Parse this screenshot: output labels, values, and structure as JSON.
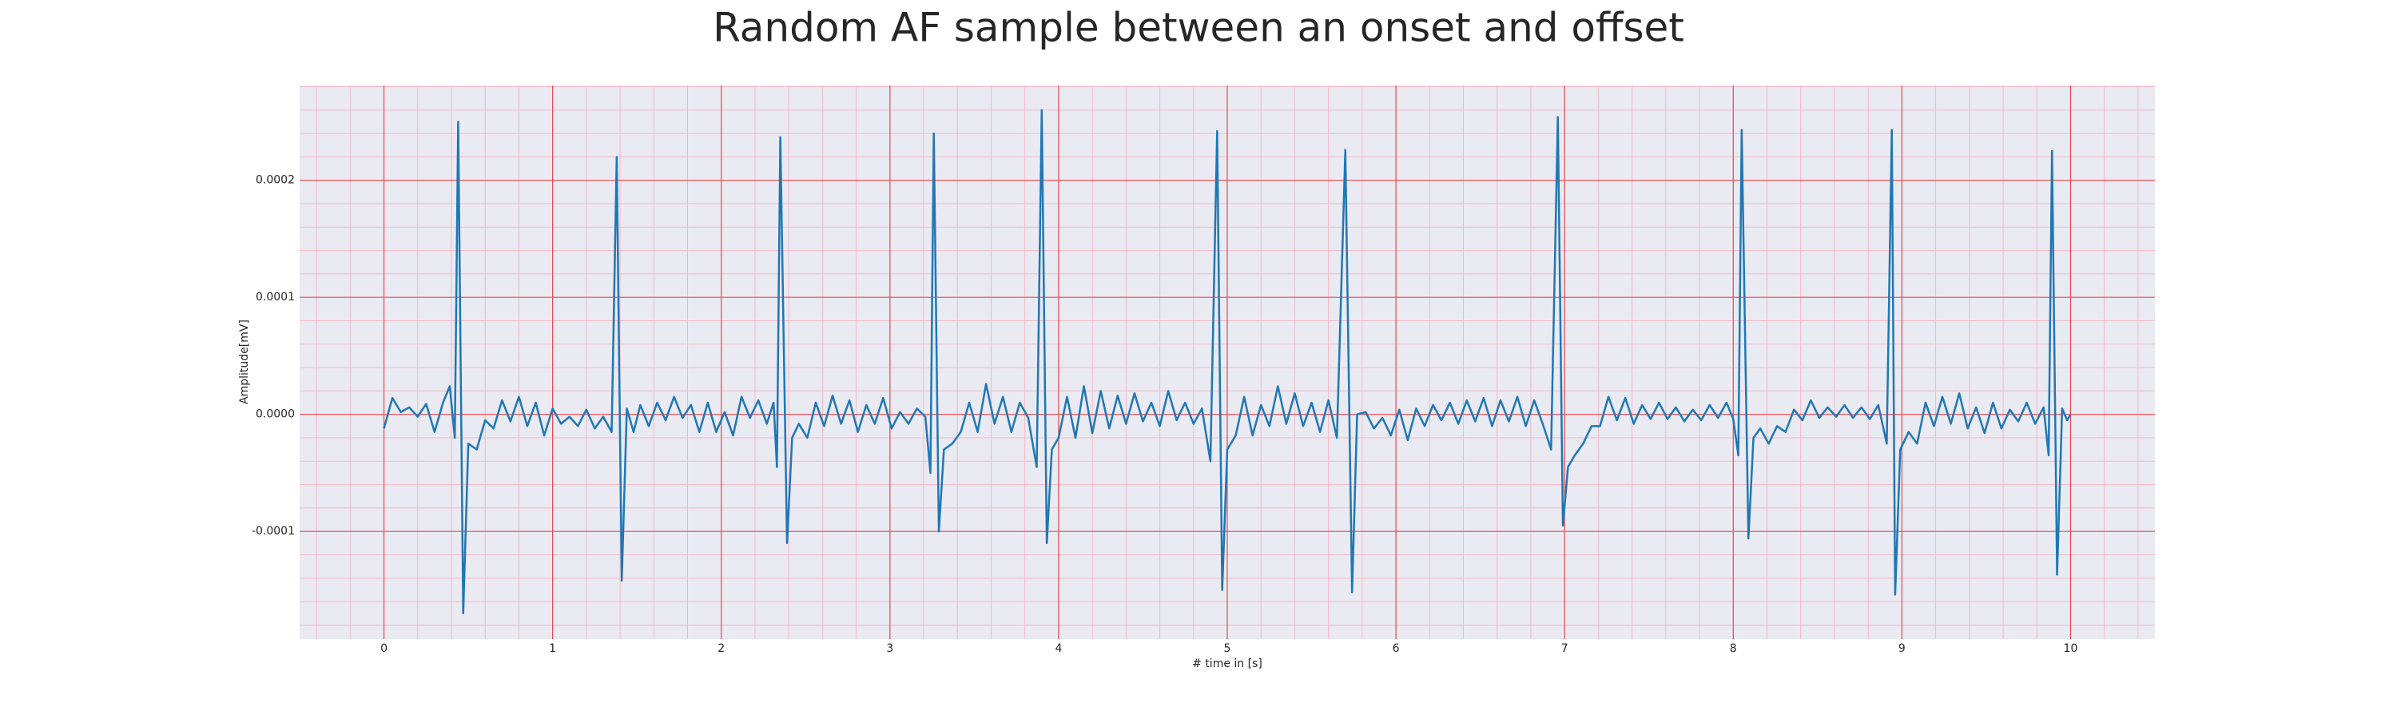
{
  "chart_data": {
    "type": "line",
    "title": "Random AF sample between an onset and offset",
    "x_label": "# time in [s]",
    "y_label": "Amplitude[mV]",
    "xlim": [
      -0.5,
      10.5
    ],
    "ylim": [
      -0.000192,
      0.000281
    ],
    "xticks": [
      0,
      1,
      2,
      3,
      4,
      5,
      6,
      7,
      8,
      9,
      10
    ],
    "yticks": [
      -0.0001,
      {
        "value": 0,
        "label": "0.0000"
      },
      0.0001,
      0.0002
    ],
    "xminorticks": [
      -0.4,
      -0.2,
      0.2,
      0.4,
      0.6,
      0.8,
      1.2,
      1.4,
      1.6,
      1.8,
      2.2,
      2.4,
      2.6,
      2.8,
      3.2,
      3.4,
      3.6,
      3.8,
      4.2,
      4.4,
      4.6,
      4.8,
      5.2,
      5.4,
      5.6,
      5.8,
      6.2,
      6.4,
      6.6,
      6.8,
      7.2,
      7.4,
      7.6,
      7.8,
      8.2,
      8.4,
      8.6,
      8.8,
      9.2,
      9.4,
      9.6,
      9.8,
      10.2,
      10.4
    ],
    "yminorticks": [
      -0.00018,
      -0.00016,
      -0.00014,
      -0.00012,
      -8e-05,
      -6e-05,
      -4e-05,
      -2e-05,
      2e-05,
      4e-05,
      6e-05,
      8e-05,
      0.00012,
      0.00014,
      0.00016,
      0.00018,
      0.00022,
      0.00024,
      0.00026,
      0.00028
    ],
    "grid": true,
    "background": "#eaeaf2",
    "grid_color": "#e8474c",
    "minor_grid_color": "#f3b8c6",
    "x": [
      0,
      0.05,
      0.1,
      0.15,
      0.2,
      0.25,
      0.3,
      0.35,
      0.39,
      0.42,
      0.44,
      0.47,
      0.5,
      0.55,
      0.6,
      0.65,
      0.7,
      0.75,
      0.8,
      0.85,
      0.9,
      0.95,
      1.0,
      1.05,
      1.1,
      1.15,
      1.2,
      1.25,
      1.3,
      1.35,
      1.38,
      1.41,
      1.44,
      1.48,
      1.52,
      1.57,
      1.62,
      1.67,
      1.72,
      1.77,
      1.82,
      1.87,
      1.92,
      1.97,
      2.02,
      2.07,
      2.12,
      2.17,
      2.22,
      2.27,
      2.31,
      2.33,
      2.35,
      2.39,
      2.42,
      2.46,
      2.51,
      2.56,
      2.61,
      2.66,
      2.71,
      2.76,
      2.81,
      2.86,
      2.91,
      2.96,
      3.01,
      3.06,
      3.11,
      3.16,
      3.21,
      3.24,
      3.26,
      3.29,
      3.32,
      3.37,
      3.42,
      3.47,
      3.52,
      3.57,
      3.62,
      3.67,
      3.72,
      3.77,
      3.82,
      3.87,
      3.9,
      3.93,
      3.96,
      4.0,
      4.05,
      4.1,
      4.15,
      4.2,
      4.25,
      4.3,
      4.35,
      4.4,
      4.45,
      4.5,
      4.55,
      4.6,
      4.65,
      4.7,
      4.75,
      4.8,
      4.85,
      4.9,
      4.94,
      4.97,
      5.0,
      5.05,
      5.1,
      5.15,
      5.2,
      5.25,
      5.3,
      5.35,
      5.4,
      5.45,
      5.5,
      5.55,
      5.6,
      5.65,
      5.7,
      5.74,
      5.77,
      5.82,
      5.87,
      5.92,
      5.97,
      6.02,
      6.07,
      6.12,
      6.17,
      6.22,
      6.27,
      6.32,
      6.37,
      6.42,
      6.47,
      6.52,
      6.57,
      6.62,
      6.67,
      6.72,
      6.77,
      6.82,
      6.87,
      6.92,
      6.96,
      6.99,
      7.02,
      7.06,
      7.11,
      7.16,
      7.21,
      7.26,
      7.31,
      7.36,
      7.41,
      7.46,
      7.51,
      7.56,
      7.61,
      7.66,
      7.71,
      7.76,
      7.81,
      7.86,
      7.91,
      7.96,
      8.0,
      8.03,
      8.05,
      8.09,
      8.12,
      8.16,
      8.21,
      8.26,
      8.31,
      8.36,
      8.41,
      8.46,
      8.51,
      8.56,
      8.61,
      8.66,
      8.71,
      8.76,
      8.81,
      8.86,
      8.91,
      8.94,
      8.96,
      8.99,
      9.04,
      9.09,
      9.14,
      9.19,
      9.24,
      9.29,
      9.34,
      9.39,
      9.44,
      9.49,
      9.54,
      9.59,
      9.64,
      9.69,
      9.74,
      9.79,
      9.84,
      9.87,
      9.89,
      9.92,
      9.95,
      9.98,
      10.0
    ],
    "series": [
      {
        "color": "#1f77b4",
        "values": [
          -1.2e-05,
          1.4e-05,
          2e-06,
          6e-06,
          -2e-06,
          9e-06,
          -1.5e-05,
          1e-05,
          2.4e-05,
          -2e-05,
          0.00025,
          -0.00017,
          -2.5e-05,
          -3e-05,
          -5e-06,
          -1.2e-05,
          1.2e-05,
          -6e-06,
          1.5e-05,
          -1e-05,
          1e-05,
          -1.8e-05,
          5e-06,
          -8e-06,
          -2e-06,
          -1e-05,
          4e-06,
          -1.2e-05,
          -2e-06,
          -1.5e-05,
          0.00022,
          -0.000142,
          5e-06,
          -1.5e-05,
          8e-06,
          -1e-05,
          1e-05,
          -5e-06,
          1.5e-05,
          -3e-06,
          8e-06,
          -1.5e-05,
          1e-05,
          -1.5e-05,
          2e-06,
          -1.8e-05,
          1.5e-05,
          -3e-06,
          1.2e-05,
          -8e-06,
          1e-05,
          -4.5e-05,
          0.000237,
          -0.00011,
          -2e-05,
          -8e-06,
          -2e-05,
          1e-05,
          -1e-05,
          1.6e-05,
          -8e-06,
          1.2e-05,
          -1.5e-05,
          8e-06,
          -8e-06,
          1.4e-05,
          -1.2e-05,
          2e-06,
          -8e-06,
          5e-06,
          -2e-06,
          -5e-05,
          0.00024,
          -0.0001,
          -3e-05,
          -2.5e-05,
          -1.5e-05,
          1e-05,
          -1.5e-05,
          2.6e-05,
          -8e-06,
          1.5e-05,
          -1.5e-05,
          1e-05,
          -3e-06,
          -4.5e-05,
          0.00026,
          -0.00011,
          -3e-05,
          -2e-05,
          1.5e-05,
          -2e-05,
          2.4e-05,
          -1.6e-05,
          2e-05,
          -1.2e-05,
          1.6e-05,
          -8e-06,
          1.8e-05,
          -6e-06,
          1e-05,
          -1e-05,
          2e-05,
          -5e-06,
          1e-05,
          -8e-06,
          5e-06,
          -4e-05,
          0.000242,
          -0.00015,
          -3e-05,
          -1.8e-05,
          1.5e-05,
          -1.8e-05,
          8e-06,
          -1e-05,
          2.4e-05,
          -8e-06,
          1.8e-05,
          -1e-05,
          1e-05,
          -1.5e-05,
          1.2e-05,
          -2e-05,
          0.000226,
          -0.000152,
          0,
          2e-06,
          -1.2e-05,
          -3e-06,
          -1.8e-05,
          4e-06,
          -2.2e-05,
          5e-06,
          -1e-05,
          8e-06,
          -5e-06,
          1e-05,
          -8e-06,
          1.2e-05,
          -6e-06,
          1.4e-05,
          -1e-05,
          1.2e-05,
          -6e-06,
          1.5e-05,
          -1e-05,
          1.2e-05,
          -8e-06,
          -3e-05,
          0.000254,
          -9.5e-05,
          -4.5e-05,
          -3.5e-05,
          -2.5e-05,
          -1e-05,
          -1e-05,
          1.5e-05,
          -5e-06,
          1.4e-05,
          -8e-06,
          8e-06,
          -4e-06,
          1e-05,
          -4e-06,
          6e-06,
          -6e-06,
          4e-06,
          -5e-06,
          8e-06,
          -3e-06,
          1e-05,
          -4e-06,
          -3.5e-05,
          0.000243,
          -0.000106,
          -2e-05,
          -1.2e-05,
          -2.5e-05,
          -1e-05,
          -1.5e-05,
          4e-06,
          -5e-06,
          1.2e-05,
          -3e-06,
          6e-06,
          -2e-06,
          8e-06,
          -3e-06,
          6e-06,
          -4e-06,
          8e-06,
          -2.5e-05,
          0.000243,
          -0.000154,
          -3e-05,
          -1.5e-05,
          -2.5e-05,
          1e-05,
          -1e-05,
          1.5e-05,
          -8e-06,
          1.8e-05,
          -1.2e-05,
          6e-06,
          -1.6e-05,
          1e-05,
          -1.2e-05,
          4e-06,
          -6e-06,
          1e-05,
          -8e-06,
          6e-06,
          -3.5e-05,
          0.000225,
          -0.000137,
          5e-06,
          -5e-06,
          0
        ]
      }
    ]
  }
}
